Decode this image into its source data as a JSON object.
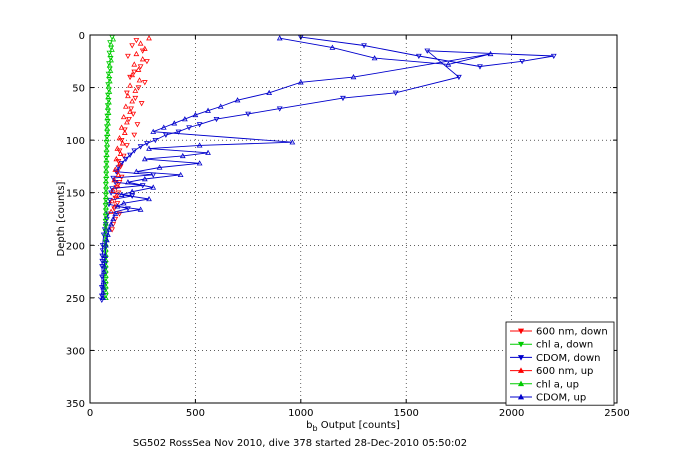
{
  "chart_data": {
    "type": "scatter",
    "title": "",
    "xlabel_main": "b",
    "xlabel_sub": "b",
    "xlabel_rest": " Output [counts]",
    "ylabel": "Depth [counts]",
    "xlim": [
      0,
      2500
    ],
    "ylim": [
      0,
      350
    ],
    "y_reversed": true,
    "grid": true,
    "x_ticks": [
      "0",
      "500",
      "1000",
      "1500",
      "2000",
      "2500"
    ],
    "y_ticks": [
      "0",
      "50",
      "100",
      "150",
      "200",
      "250",
      "300",
      "350"
    ],
    "legend_position": "bottom-right",
    "caption": "SG502 RossSea Nov 2010, dive 378 started 28-Dec-2010 05:50:02",
    "series": [
      {
        "name": "600 nm, down",
        "color": "#ff0000",
        "marker": "triangle-down",
        "line": false,
        "x": [
          220,
          200,
          250,
          180,
          270,
          240,
          210,
          190,
          260,
          230,
          175,
          215,
          245,
          195,
          205,
          185,
          225,
          165,
          210,
          150,
          175,
          140,
          160,
          135,
          145,
          130,
          150,
          140,
          125,
          135,
          120,
          130,
          115,
          140,
          120,
          110,
          105
        ],
        "y": [
          5,
          10,
          15,
          20,
          25,
          30,
          35,
          40,
          45,
          50,
          55,
          60,
          65,
          70,
          75,
          80,
          85,
          90,
          95,
          100,
          105,
          110,
          115,
          120,
          125,
          130,
          135,
          140,
          145,
          150,
          155,
          160,
          165,
          170,
          175,
          180,
          185
        ]
      },
      {
        "name": "chl a, down",
        "color": "#00cc00",
        "marker": "triangle-down",
        "line": false,
        "x": [
          105,
          95,
          100,
          92,
          98,
          90,
          94,
          88,
          92,
          86,
          90,
          85,
          88,
          84,
          86,
          82,
          84,
          80,
          82,
          80,
          78,
          80,
          78,
          77,
          78,
          76,
          77,
          76,
          75,
          76,
          75,
          75,
          74,
          75,
          74,
          74,
          74,
          74,
          74,
          74,
          74,
          74,
          74,
          74,
          74,
          74,
          74,
          74,
          74,
          74
        ],
        "y": [
          2,
          7,
          12,
          17,
          22,
          27,
          32,
          37,
          42,
          47,
          52,
          57,
          62,
          67,
          72,
          77,
          82,
          87,
          92,
          97,
          102,
          107,
          112,
          117,
          122,
          127,
          132,
          137,
          142,
          147,
          152,
          157,
          162,
          167,
          172,
          177,
          182,
          187,
          192,
          197,
          202,
          207,
          212,
          217,
          222,
          227,
          232,
          237,
          242,
          248
        ]
      },
      {
        "name": "CDOM, down",
        "color": "#0000cc",
        "marker": "triangle-down",
        "line": true,
        "x": [
          1000,
          1300,
          1560,
          1850,
          2050,
          2200,
          1600,
          1750,
          1450,
          1200,
          900,
          750,
          600,
          520,
          470,
          420,
          360,
          310,
          270,
          240,
          210,
          190,
          170,
          150,
          135,
          125,
          300,
          110,
          120,
          250,
          105,
          100,
          200,
          95,
          90,
          180,
          85,
          80,
          75,
          70,
          65,
          60,
          60,
          58,
          58,
          57,
          57,
          56,
          56,
          56
        ],
        "y": [
          2,
          10,
          20,
          30,
          25,
          20,
          15,
          40,
          55,
          60,
          70,
          75,
          80,
          85,
          88,
          92,
          95,
          100,
          103,
          106,
          110,
          114,
          118,
          122,
          126,
          130,
          133,
          136,
          140,
          143,
          146,
          150,
          153,
          157,
          161,
          165,
          170,
          175,
          180,
          185,
          190,
          200,
          205,
          210,
          215,
          220,
          230,
          240,
          248,
          252
        ]
      },
      {
        "name": "600 nm, up",
        "color": "#ff0000",
        "marker": "triangle-up",
        "line": false,
        "x": [
          280,
          240,
          260,
          220,
          250,
          210,
          230,
          200,
          235,
          190,
          215,
          180,
          200,
          170,
          190,
          160,
          175,
          150,
          165,
          140,
          155,
          130,
          145,
          125,
          140,
          120,
          135,
          115,
          130,
          110,
          125,
          105,
          118,
          100
        ],
        "y": [
          3,
          8,
          13,
          18,
          23,
          28,
          33,
          38,
          43,
          48,
          53,
          58,
          63,
          68,
          73,
          78,
          83,
          88,
          93,
          98,
          103,
          108,
          113,
          118,
          123,
          128,
          133,
          138,
          143,
          148,
          153,
          158,
          163,
          168
        ]
      },
      {
        "name": "chl a, up",
        "color": "#00cc00",
        "marker": "triangle-up",
        "line": false,
        "x": [
          110,
          100,
          104,
          96,
          100,
          93,
          97,
          90,
          94,
          88,
          92,
          86,
          90,
          84,
          88,
          82,
          86,
          81,
          84,
          80,
          82,
          79,
          80,
          78,
          79,
          77,
          78,
          76,
          77,
          76,
          76,
          75,
          76,
          75,
          75,
          75,
          75,
          75,
          75,
          75,
          75,
          75,
          75,
          75,
          75,
          75,
          75,
          75,
          75,
          75
        ],
        "y": [
          4,
          9,
          14,
          19,
          24,
          29,
          34,
          39,
          44,
          49,
          54,
          59,
          64,
          69,
          74,
          79,
          84,
          89,
          94,
          99,
          104,
          109,
          114,
          119,
          124,
          129,
          134,
          139,
          144,
          149,
          154,
          159,
          164,
          169,
          174,
          179,
          184,
          189,
          194,
          199,
          204,
          209,
          214,
          219,
          224,
          229,
          234,
          239,
          244,
          250
        ]
      },
      {
        "name": "CDOM, up",
        "color": "#0000cc",
        "marker": "triangle-up",
        "line": true,
        "x": [
          900,
          1150,
          1350,
          1700,
          1900,
          1250,
          1000,
          850,
          700,
          620,
          560,
          500,
          450,
          400,
          350,
          300,
          960,
          520,
          280,
          560,
          440,
          260,
          520,
          330,
          220,
          430,
          260,
          180,
          300,
          200,
          150,
          280,
          160,
          130,
          240,
          120,
          110,
          100,
          90,
          85,
          80,
          75,
          72,
          70,
          68,
          66,
          64,
          63,
          62,
          62
        ],
        "y": [
          3,
          12,
          22,
          28,
          18,
          40,
          45,
          55,
          62,
          68,
          72,
          76,
          80,
          84,
          88,
          92,
          102,
          105,
          108,
          112,
          115,
          118,
          122,
          126,
          130,
          133,
          137,
          140,
          145,
          149,
          152,
          156,
          160,
          163,
          166,
          170,
          175,
          180,
          185,
          190,
          195,
          200,
          210,
          215,
          220,
          225,
          235,
          240,
          245,
          250
        ]
      }
    ]
  }
}
